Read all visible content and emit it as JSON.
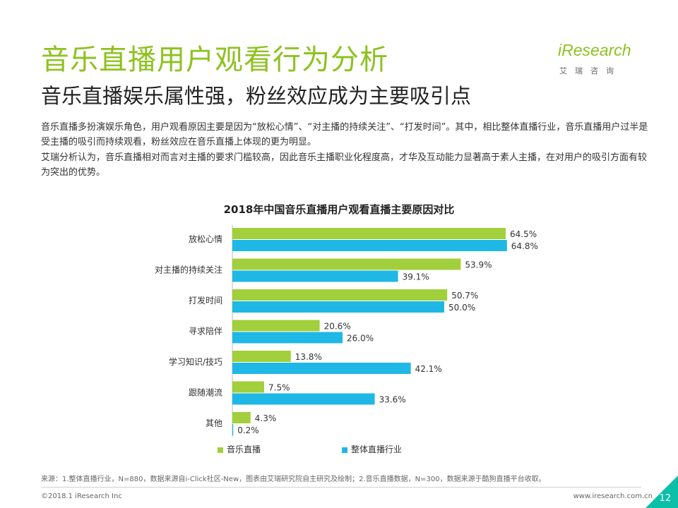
{
  "header": {
    "title": "音乐直播用户观看行为分析",
    "subtitle": "音乐直播娱乐属性强，粉丝效应成为主要吸引点"
  },
  "logo": {
    "text": "iResearch",
    "cn": "艾瑞咨询"
  },
  "body": {
    "para1": "音乐直播多扮演娱乐角色，用户观看原因主要是因为“放松心情”、“对主播的持续关注”、“打发时间”。其中，相比整体直播行业，音乐直播用户过半是受主播的吸引而持续观看，粉丝效应在音乐直播上体现的更为明显。",
    "para2": "艾瑞分析认为，音乐直播相对而言对主播的要求门槛较高，因此音乐主播职业化程度高，才华及互动能力显著高于素人主播，在对用户的吸引方面有较为突出的优势。"
  },
  "colors": {
    "accent": "#8dc21f",
    "series_a": "#a2cf3c",
    "series_b": "#1fb8e6",
    "corner": "#0bbfa8"
  },
  "chart_data": {
    "type": "bar",
    "orientation": "horizontal",
    "title": "2018年中国音乐直播用户观看直播主要原因对比",
    "categories": [
      "放松心情",
      "对主播的持续关注",
      "打发时间",
      "寻求陪伴",
      "学习知识/技巧",
      "跟随潮流",
      "其他"
    ],
    "series": [
      {
        "name": "音乐直播",
        "color": "#a2cf3c",
        "values": [
          64.5,
          53.9,
          50.7,
          20.6,
          13.8,
          7.5,
          4.3
        ],
        "labels": [
          "64.5%",
          "53.9%",
          "50.7%",
          "20.6%",
          "13.8%",
          "7.5%",
          "4.3%"
        ]
      },
      {
        "name": "整体直播行业",
        "color": "#1fb8e6",
        "values": [
          64.8,
          39.1,
          50.0,
          26.0,
          42.1,
          33.6,
          0.2
        ],
        "labels": [
          "64.8%",
          "39.1%",
          "50.0%",
          "26.0%",
          "42.1%",
          "33.6%",
          "0.2%"
        ]
      }
    ],
    "xlim": [
      0,
      70
    ],
    "grid": false,
    "legend": "bottom"
  },
  "footer": {
    "source": "来源：1.整体直播行业，N=880，数据来源自i-Click社区-New，图表由艾瑞研究院自主研究及绘制；2.音乐直播数据，N=300，数据来源于酷狗直播平台收取。",
    "copyright": "©2018.1 iResearch Inc",
    "website": "www.iresearch.com.cn",
    "page": "12"
  }
}
